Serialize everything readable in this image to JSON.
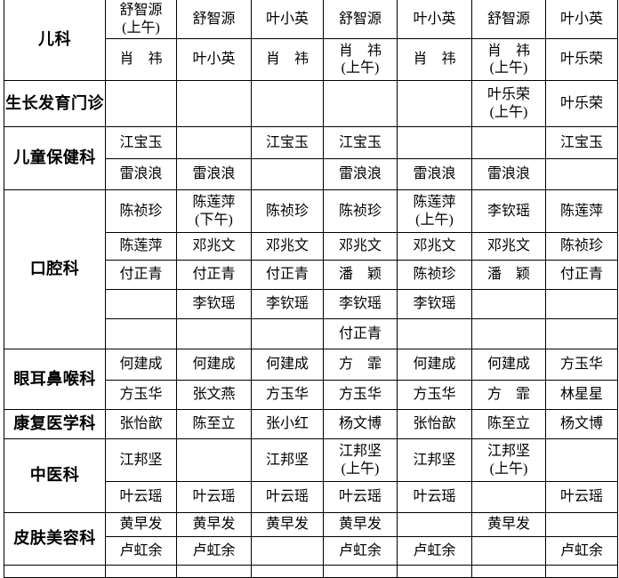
{
  "page": {
    "background_color": "#ffffff",
    "grid_border_color": "#000000",
    "text_color": "#000000"
  },
  "chart_data": {
    "type": "table",
    "title": "",
    "legend_position": "none",
    "grid": true,
    "num_day_columns": 7,
    "departments": [
      {
        "name": "儿科",
        "rows": [
          [
            "舒智源\n(上午)",
            "舒智源",
            "叶小英",
            "舒智源",
            "叶小英",
            "舒智源",
            "叶小英"
          ],
          [
            "肖　祎",
            "叶小英",
            "肖　祎",
            "肖　祎\n(上午)",
            "肖　祎",
            "肖　祎\n(上午)",
            "叶乐荣"
          ]
        ]
      },
      {
        "name": "生长发育门诊",
        "rows": [
          [
            "",
            "",
            "",
            "",
            "",
            "叶乐荣\n(上午)",
            "叶乐荣"
          ]
        ]
      },
      {
        "name": "儿童保健科",
        "rows": [
          [
            "江宝玉",
            "",
            "江宝玉",
            "江宝玉",
            "",
            "",
            "江宝玉"
          ],
          [
            "雷浪浪",
            "雷浪浪",
            "",
            "雷浪浪",
            "雷浪浪",
            "雷浪浪",
            ""
          ]
        ]
      },
      {
        "name": "口腔科",
        "rows": [
          [
            "陈祯珍",
            "陈莲萍\n(下午)",
            "陈祯珍",
            "陈祯珍",
            "陈莲萍\n(上午)",
            "李钦瑶",
            "陈莲萍"
          ],
          [
            "陈莲萍",
            "邓兆文",
            "邓兆文",
            "邓兆文",
            "邓兆文",
            "邓兆文",
            "陈祯珍"
          ],
          [
            "付正青",
            "付正青",
            "付正青",
            "潘　颖",
            "陈祯珍",
            "潘　颖",
            "付正青"
          ],
          [
            "",
            "李钦瑶",
            "李钦瑶",
            "李钦瑶",
            "李钦瑶",
            "",
            ""
          ],
          [
            "",
            "",
            "",
            "付正青",
            "",
            "",
            ""
          ]
        ]
      },
      {
        "name": "眼耳鼻喉科",
        "rows": [
          [
            "何建成",
            "何建成",
            "何建成",
            "方　霏",
            "何建成",
            "何建成",
            "方玉华"
          ],
          [
            "方玉华",
            "张文燕",
            "方玉华",
            "方玉华",
            "方玉华",
            "方　霏",
            "林星星"
          ]
        ]
      },
      {
        "name": "康复医学科",
        "rows": [
          [
            "张怡歆",
            "陈至立",
            "张小红",
            "杨文博",
            "张怡歆",
            "陈至立",
            "杨文博"
          ]
        ]
      },
      {
        "name": "中医科",
        "rows": [
          [
            "江邦坚",
            "",
            "江邦坚",
            "江邦坚\n(上午)",
            "江邦坚",
            "江邦坚\n(上午)",
            ""
          ],
          [
            "叶云瑶",
            "叶云瑶",
            "叶云瑶",
            "叶云瑶",
            "叶云瑶",
            "",
            "叶云瑶"
          ]
        ]
      },
      {
        "name": "皮肤美容科",
        "rows": [
          [
            "黄早发",
            "黄早发",
            "黄早发",
            "黄早发",
            "",
            "黄早发",
            ""
          ],
          [
            "卢虹余",
            "卢虹余",
            "",
            "卢虹余",
            "卢虹余",
            "",
            "卢虹余"
          ]
        ]
      }
    ],
    "has_partial_bottom_row": true
  }
}
